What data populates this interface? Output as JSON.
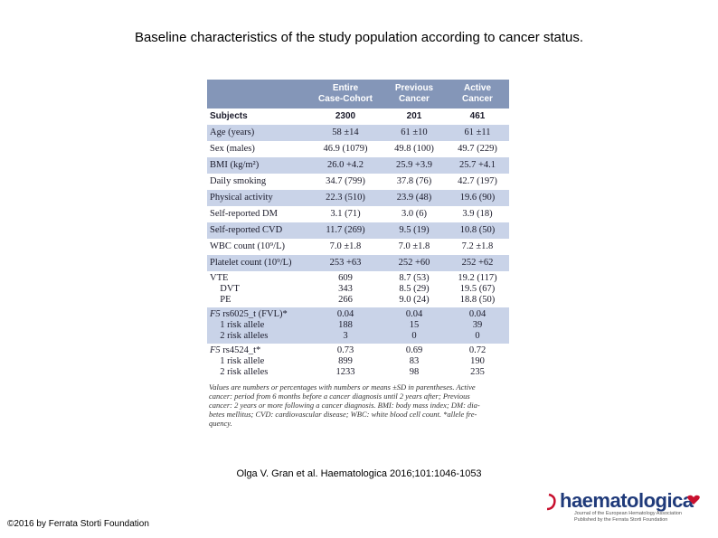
{
  "title": "Baseline characteristics of the study population according to cancer status.",
  "table": {
    "headers": [
      {
        "lines": [
          "",
          ""
        ]
      },
      {
        "lines": [
          "Entire",
          "Case-Cohort"
        ]
      },
      {
        "lines": [
          "Previous",
          "Cancer"
        ]
      },
      {
        "lines": [
          "Active",
          "Cancer"
        ]
      }
    ],
    "rows": [
      {
        "label": [
          "Subjects"
        ],
        "values": [
          [
            "2300"
          ],
          [
            "201"
          ],
          [
            "461"
          ]
        ],
        "style": "bold"
      },
      {
        "label": [
          "Age (years)"
        ],
        "values": [
          [
            "58 ±14"
          ],
          [
            "61 ±10"
          ],
          [
            "61 ±11"
          ]
        ]
      },
      {
        "label": [
          "Sex (males)"
        ],
        "values": [
          [
            "46.9 (1079)"
          ],
          [
            "49.8 (100)"
          ],
          [
            "49.7 (229)"
          ]
        ]
      },
      {
        "label": [
          "BMI (kg/m²)"
        ],
        "values": [
          [
            "26.0 +4.2"
          ],
          [
            "25.9 +3.9"
          ],
          [
            "25.7 +4.1"
          ]
        ]
      },
      {
        "label": [
          "Daily smoking"
        ],
        "values": [
          [
            "34.7 (799)"
          ],
          [
            "37.8 (76)"
          ],
          [
            "42.7 (197)"
          ]
        ]
      },
      {
        "label": [
          "Physical activity"
        ],
        "values": [
          [
            "22.3 (510)"
          ],
          [
            "23.9 (48)"
          ],
          [
            "19.6 (90)"
          ]
        ]
      },
      {
        "label": [
          "Self-reported DM"
        ],
        "values": [
          [
            "3.1 (71)"
          ],
          [
            "3.0 (6)"
          ],
          [
            "3.9 (18)"
          ]
        ]
      },
      {
        "label": [
          "Self-reported CVD"
        ],
        "values": [
          [
            "11.7 (269)"
          ],
          [
            "9.5 (19)"
          ],
          [
            "10.8 (50)"
          ]
        ]
      },
      {
        "label": [
          "WBC count (10⁹/L)"
        ],
        "values": [
          [
            "7.0 ±1.8"
          ],
          [
            "7.0 ±1.8"
          ],
          [
            "7.2 ±1.8"
          ]
        ]
      },
      {
        "label": [
          "Platelet count (10⁹/L)"
        ],
        "values": [
          [
            "253 +63"
          ],
          [
            "252 +60"
          ],
          [
            "252 +62"
          ]
        ]
      },
      {
        "label": [
          "VTE",
          "  DVT",
          "  PE"
        ],
        "values": [
          [
            "609",
            "343",
            "266"
          ],
          [
            "8.7 (53)",
            "8.5 (29)",
            "9.0 (24)"
          ],
          [
            "19.2 (117)",
            "19.5 (67)",
            "18.8 (50)"
          ]
        ]
      },
      {
        "label": [
          "F5 rs6025_t (FVL)*",
          "  1 risk allele",
          "  2 risk alleles"
        ],
        "values": [
          [
            "0.04",
            "188",
            "3"
          ],
          [
            "0.04",
            "15",
            "0"
          ],
          [
            "0.04",
            "39",
            "0"
          ]
        ]
      },
      {
        "label": [
          "F5 rs4524_t*",
          "  1 risk allele",
          "  2 risk alleles"
        ],
        "values": [
          [
            "0.73",
            "899",
            "1233"
          ],
          [
            "0.69",
            "83",
            "98"
          ],
          [
            "0.72",
            "190",
            "235"
          ]
        ]
      }
    ],
    "footnote": "Values are numbers or percentages with numbers or means ±SD in parentheses. Active\ncancer: period from 6 months before a cancer diagnosis until 2 years after; Previous\ncancer: 2 years or more following a cancer diagnosis. BMI: body mass index; DM: dia-\nbetes mellitus; CVD: cardiovascular disease; WBC: white blood cell count. *allele fre-\nquency."
  },
  "citation": "Olga V. Gran et al. Haematologica 2016;101:1046-1053",
  "copyright": "©2016 by Ferrata Storti Foundation",
  "logo": {
    "name": "haematologica",
    "tagline": "Journal of the European Hematology Association\nPublished by the Ferrata Storti Foundation",
    "brand_color": "#1f3a7a",
    "accent_color": "#c8102e"
  },
  "colors": {
    "header_bg": "#8496b8",
    "stripe": "#c9d3e8"
  }
}
